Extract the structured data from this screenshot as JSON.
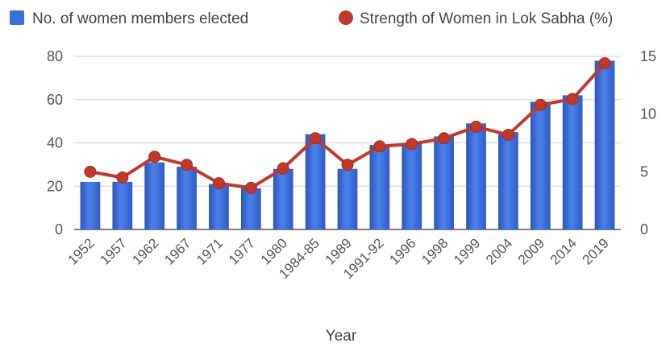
{
  "chart_data": {
    "type": "bar",
    "categories": [
      "1952",
      "1957",
      "1962",
      "1967",
      "1971",
      "1977",
      "1980",
      "1984-85",
      "1989",
      "1991-92",
      "1996",
      "1998",
      "1999",
      "2004",
      "2009",
      "2014",
      "2019"
    ],
    "series": [
      {
        "name": "No. of women members elected",
        "type": "bar",
        "axis": "left",
        "color": "#3b6fd8",
        "values": [
          22,
          22,
          31,
          29,
          21,
          19,
          28,
          44,
          28,
          39,
          40,
          43,
          49,
          45,
          59,
          62,
          78
        ]
      },
      {
        "name": "Strength of Women in Lok Sabha (%)",
        "type": "line",
        "axis": "right",
        "color": "#c0392b",
        "values": [
          5.0,
          4.5,
          6.3,
          5.6,
          4.0,
          3.6,
          5.3,
          7.9,
          5.6,
          7.2,
          7.4,
          7.9,
          8.9,
          8.2,
          10.8,
          11.3,
          14.4
        ]
      }
    ],
    "xlabel": "Year",
    "y_left": {
      "min": 0,
      "max": 80,
      "ticks": [
        0,
        20,
        40,
        60,
        80
      ]
    },
    "y_right": {
      "min": 0,
      "max": 15,
      "ticks": [
        0,
        5,
        10,
        15
      ]
    },
    "grid": true,
    "legend_position": "top"
  }
}
